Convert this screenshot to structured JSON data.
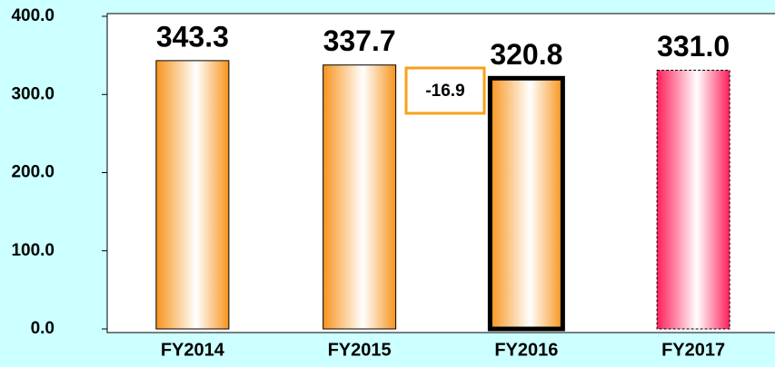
{
  "chart_data": {
    "type": "bar",
    "categories": [
      "FY2014",
      "FY2015",
      "FY2016",
      "FY2017"
    ],
    "values": [
      343.3,
      337.7,
      320.8,
      331.0
    ],
    "value_labels": [
      "343.3",
      "337.7",
      "320.8",
      "331.0"
    ],
    "colors": [
      "#f7941d",
      "#f7941d",
      "#f7941d",
      "#ff1f5a"
    ],
    "edge_styles": [
      "thin",
      "thin",
      "bold",
      "dashed"
    ],
    "annotation": "-16.9",
    "ylim": [
      0,
      400
    ],
    "yticks": [
      {
        "value": 0,
        "label": "0.0"
      },
      {
        "value": 100,
        "label": "100.0"
      },
      {
        "value": 200,
        "label": "200.0"
      },
      {
        "value": 300,
        "label": "300.0"
      },
      {
        "value": 400,
        "label": "400.0"
      }
    ]
  }
}
